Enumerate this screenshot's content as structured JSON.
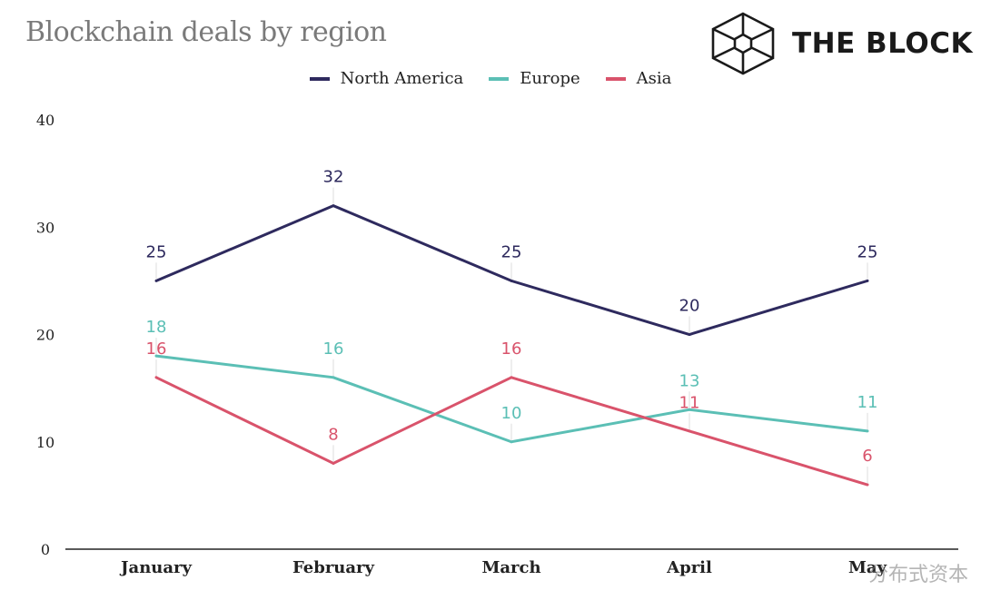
{
  "title": "Blockchain deals by region",
  "brand": {
    "name": "THE BLOCK",
    "logo_icon": "cube-logo-icon"
  },
  "watermark": "分布式资本",
  "chart_data": {
    "type": "line",
    "title": "Blockchain deals by region",
    "categories": [
      "January",
      "February",
      "March",
      "April",
      "May"
    ],
    "series": [
      {
        "name": "North America",
        "color": "#2e2a5e",
        "values": [
          25,
          32,
          25,
          20,
          25
        ]
      },
      {
        "name": "Europe",
        "color": "#5bbfb5",
        "values": [
          18,
          16,
          10,
          13,
          11
        ]
      },
      {
        "name": "Asia",
        "color": "#d9536b",
        "values": [
          16,
          8,
          16,
          11,
          6
        ]
      }
    ],
    "y_ticks": [
      0,
      10,
      20,
      30,
      40
    ],
    "ylim": [
      0,
      40
    ],
    "grid": false,
    "legend_position": "top-center",
    "data_labels": true
  }
}
